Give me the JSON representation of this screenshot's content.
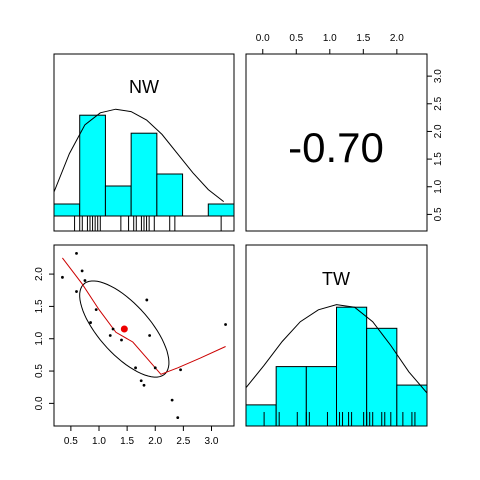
{
  "chart_data": {
    "type": "scatter-matrix",
    "variables": [
      "NW",
      "TW"
    ],
    "correlation_text": "-0.70",
    "axis": {
      "x_ticks": [
        0.0,
        0.5,
        1.0,
        1.5,
        2.0,
        2.5,
        3.0
      ],
      "x_tick_labels": [
        "0.5",
        "1.0",
        "1.5",
        "2.0",
        "2.5",
        "3.0"
      ],
      "x_tick_values": [
        0.5,
        1.0,
        1.5,
        2.0,
        2.5,
        3.0
      ],
      "y_tick_labels": [
        "0.0",
        "0.5",
        "1.0",
        "1.5",
        "2.0"
      ],
      "y_tick_values": [
        0.0,
        0.5,
        1.0,
        1.5,
        2.0
      ],
      "top_tick_labels": [
        "0.0",
        "0.5",
        "1.0",
        "1.5",
        "2.0"
      ],
      "top_tick_values": [
        0.0,
        0.5,
        1.0,
        1.5,
        2.0
      ],
      "right_tick_labels": [
        "0.5",
        "1.0",
        "1.5",
        "2.0",
        "2.5",
        "3.0"
      ],
      "right_tick_values": [
        0.5,
        1.0,
        1.5,
        2.0,
        2.5,
        3.0
      ],
      "nw_range": [
        0.2,
        3.4
      ],
      "tw_range": [
        -0.3,
        2.4
      ]
    },
    "nw_histogram": {
      "breaks": [
        0.0,
        0.5,
        1.0,
        1.5,
        2.0,
        2.5,
        3.0,
        3.5
      ],
      "heights": [
        0.1,
        0.84,
        0.25,
        0.69,
        0.35,
        0.0,
        0.1
      ],
      "density_x": [
        0.0,
        0.3,
        0.6,
        0.9,
        1.2,
        1.5,
        1.8,
        2.1,
        2.4,
        2.7,
        3.0,
        3.3
      ],
      "density_y": [
        0.2,
        0.52,
        0.76,
        0.86,
        0.89,
        0.87,
        0.8,
        0.68,
        0.52,
        0.36,
        0.22,
        0.12
      ],
      "rug": [
        0.4,
        0.5,
        0.55,
        0.65,
        0.7,
        0.75,
        0.8,
        0.85,
        0.9,
        1.3,
        1.45,
        1.55,
        1.6,
        1.7,
        1.75,
        1.8,
        1.85,
        1.95,
        2.25,
        2.35,
        3.25
      ]
    },
    "tw_histogram": {
      "breaks": [
        -0.5,
        0.0,
        0.5,
        1.0,
        1.5,
        2.0,
        2.5
      ],
      "heights": [
        0.16,
        0.45,
        0.45,
        0.9,
        0.74,
        0.31
      ],
      "density_x": [
        -0.5,
        -0.2,
        0.1,
        0.4,
        0.7,
        1.0,
        1.3,
        1.6,
        1.9,
        2.2,
        2.5
      ],
      "density_y": [
        0.29,
        0.46,
        0.64,
        0.79,
        0.88,
        0.92,
        0.9,
        0.79,
        0.61,
        0.41,
        0.25
      ],
      "rug": [
        -0.2,
        0.05,
        0.35,
        0.5,
        0.55,
        0.85,
        1.0,
        1.05,
        1.1,
        1.2,
        1.25,
        1.45,
        1.5,
        1.55,
        1.6,
        1.75,
        1.8,
        1.9,
        2.1,
        2.25,
        2.3
      ]
    },
    "scatter": {
      "points": [
        {
          "x": 0.35,
          "y": 1.95
        },
        {
          "x": 0.6,
          "y": 2.32
        },
        {
          "x": 0.6,
          "y": 1.73
        },
        {
          "x": 0.7,
          "y": 2.05
        },
        {
          "x": 0.75,
          "y": 1.9
        },
        {
          "x": 0.85,
          "y": 1.25
        },
        {
          "x": 0.95,
          "y": 1.45
        },
        {
          "x": 1.2,
          "y": 1.05
        },
        {
          "x": 1.25,
          "y": 1.15
        },
        {
          "x": 1.4,
          "y": 0.98
        },
        {
          "x": 1.65,
          "y": 0.55
        },
        {
          "x": 1.75,
          "y": 0.35
        },
        {
          "x": 1.8,
          "y": 0.28
        },
        {
          "x": 1.85,
          "y": 1.6
        },
        {
          "x": 1.9,
          "y": 1.05
        },
        {
          "x": 2.0,
          "y": 0.55
        },
        {
          "x": 2.3,
          "y": 0.05
        },
        {
          "x": 2.4,
          "y": -0.22
        },
        {
          "x": 2.45,
          "y": 0.52
        },
        {
          "x": 3.25,
          "y": 1.22
        }
      ],
      "center": {
        "x": 1.45,
        "y": 1.15
      },
      "ellipse": {
        "cx": 1.45,
        "cy": 1.15,
        "rx_nw": 0.8,
        "ry_tw": 0.75,
        "corr": -0.7
      },
      "loess": [
        {
          "x": 0.35,
          "y": 2.25
        },
        {
          "x": 0.7,
          "y": 1.85
        },
        {
          "x": 1.0,
          "y": 1.45
        },
        {
          "x": 1.3,
          "y": 1.1
        },
        {
          "x": 1.6,
          "y": 0.95
        },
        {
          "x": 1.85,
          "y": 0.7
        },
        {
          "x": 2.1,
          "y": 0.45
        },
        {
          "x": 2.4,
          "y": 0.55
        },
        {
          "x": 2.8,
          "y": 0.7
        },
        {
          "x": 3.25,
          "y": 0.88
        }
      ]
    },
    "colors": {
      "histogram_fill": "#00ffff",
      "loess_line": "#cc0000",
      "center_point": "#ee0000"
    }
  }
}
